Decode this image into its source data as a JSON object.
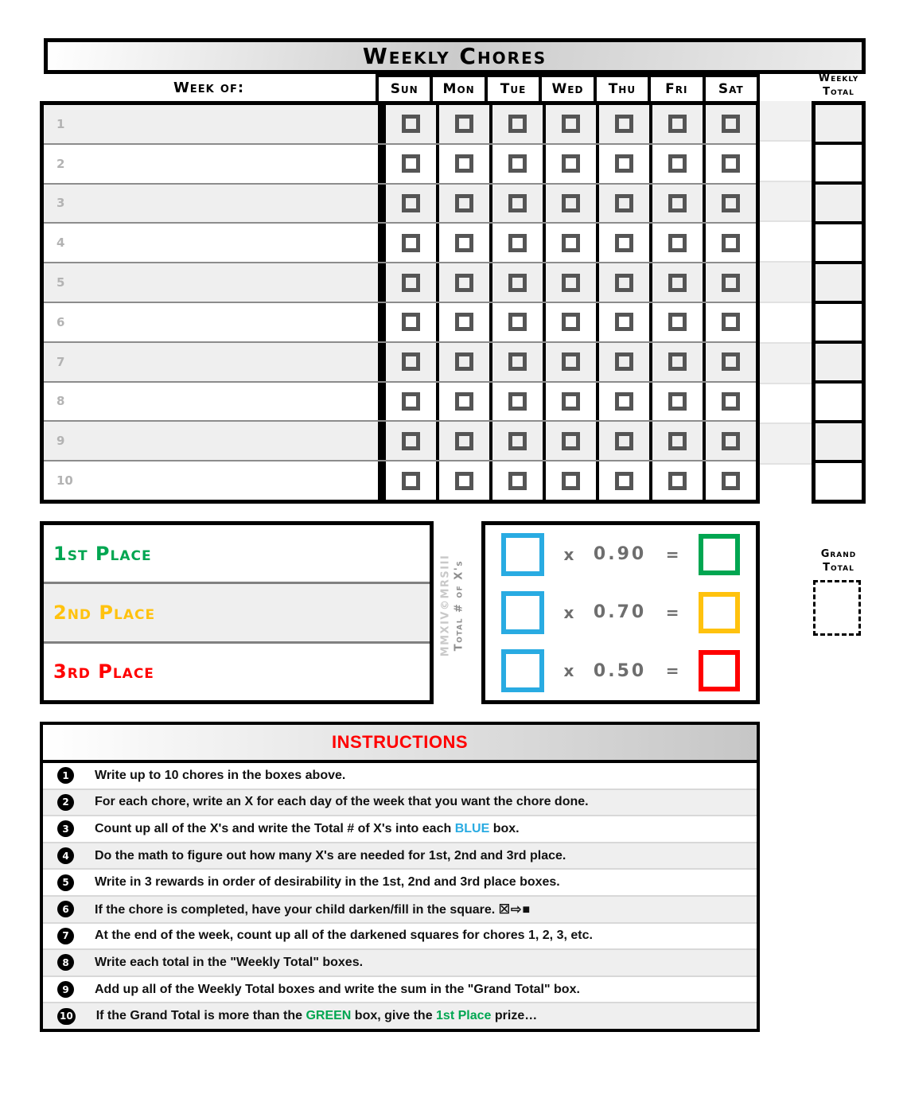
{
  "title": "Weekly Chores",
  "grid": {
    "week_of_label": "Week of:",
    "days": [
      "Sun",
      "Mon",
      "Tue",
      "Wed",
      "Thu",
      "Fri",
      "Sat"
    ],
    "weekly_total_label": [
      "Weekly",
      "Total"
    ],
    "row_numbers": [
      "1",
      "2",
      "3",
      "4",
      "5",
      "6",
      "7",
      "8",
      "9",
      "10"
    ]
  },
  "places": [
    {
      "label": "1st Place",
      "color": "#00A651"
    },
    {
      "label": "2nd Place",
      "color": "#FFC20E"
    },
    {
      "label": "3rd Place",
      "color": "#FF0000"
    }
  ],
  "watermark": {
    "line1": "MMXIV©MRSIII",
    "line2": "Total # of X's"
  },
  "math": {
    "input_color": "#29ABE2",
    "rows": [
      {
        "op": "x",
        "factor": "0.90",
        "eq": "=",
        "result_color": "#00A651"
      },
      {
        "op": "x",
        "factor": "0.70",
        "eq": "=",
        "result_color": "#FFC20E"
      },
      {
        "op": "x",
        "factor": "0.50",
        "eq": "=",
        "result_color": "#FF0000"
      }
    ]
  },
  "grand_total_label": [
    "Grand",
    "Total"
  ],
  "instructions": {
    "title": "INSTRUCTIONS",
    "items": [
      {
        "num": "1",
        "segments": [
          {
            "t": "Write up to 10 chores in the boxes above."
          }
        ]
      },
      {
        "num": "2",
        "segments": [
          {
            "t": "For each chore, write an X for each day of the week that you want the chore done."
          }
        ]
      },
      {
        "num": "3",
        "segments": [
          {
            "t": "Count up all of the X's and write the Total # of X's into each "
          },
          {
            "t": "BLUE",
            "color": "#29ABE2"
          },
          {
            "t": " box."
          }
        ]
      },
      {
        "num": "4",
        "segments": [
          {
            "t": "Do the math to figure out how many X's are needed for 1st, 2nd and 3rd place."
          }
        ]
      },
      {
        "num": "5",
        "segments": [
          {
            "t": "Write in 3 rewards in order of desirability in the 1st, 2nd and 3rd place boxes."
          }
        ]
      },
      {
        "num": "6",
        "segments": [
          {
            "t": "If the chore is completed, have your child darken/fill in the square. "
          },
          {
            "t": "☒⇨■",
            "glyphs": true
          }
        ]
      },
      {
        "num": "7",
        "segments": [
          {
            "t": "At the end of the week, count up all of the darkened squares for chores 1, 2, 3, etc."
          }
        ]
      },
      {
        "num": "8",
        "segments": [
          {
            "t": "Write each total in the \"Weekly Total\" boxes."
          }
        ]
      },
      {
        "num": "9",
        "segments": [
          {
            "t": "Add up all of the Weekly Total boxes and write the sum in the \"Grand Total\" box."
          }
        ]
      },
      {
        "num": "10",
        "segments": [
          {
            "t": "If the Grand Total is more than the "
          },
          {
            "t": "GREEN",
            "color": "#00A651"
          },
          {
            "t": " box, give the "
          },
          {
            "t": "1st Place",
            "color": "#00A651"
          },
          {
            "t": " prize…"
          }
        ]
      }
    ]
  }
}
